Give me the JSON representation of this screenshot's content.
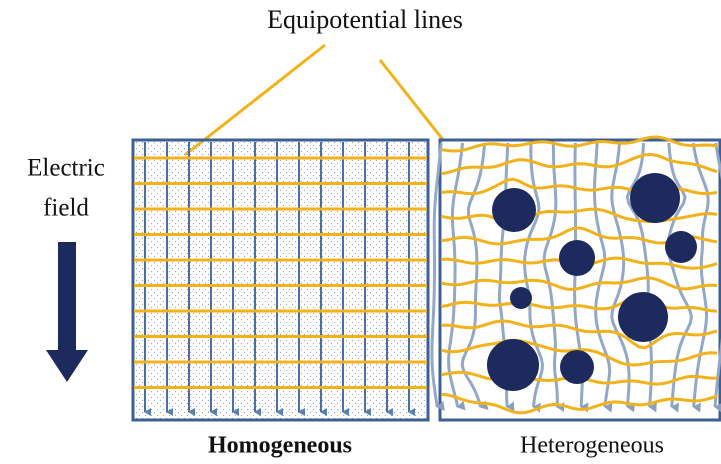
{
  "title": "Equipotential lines",
  "field_label": [
    "Electric",
    "field"
  ],
  "panels": [
    {
      "label": "Homogeneous"
    },
    {
      "label": "Heterogeneous"
    }
  ]
}
